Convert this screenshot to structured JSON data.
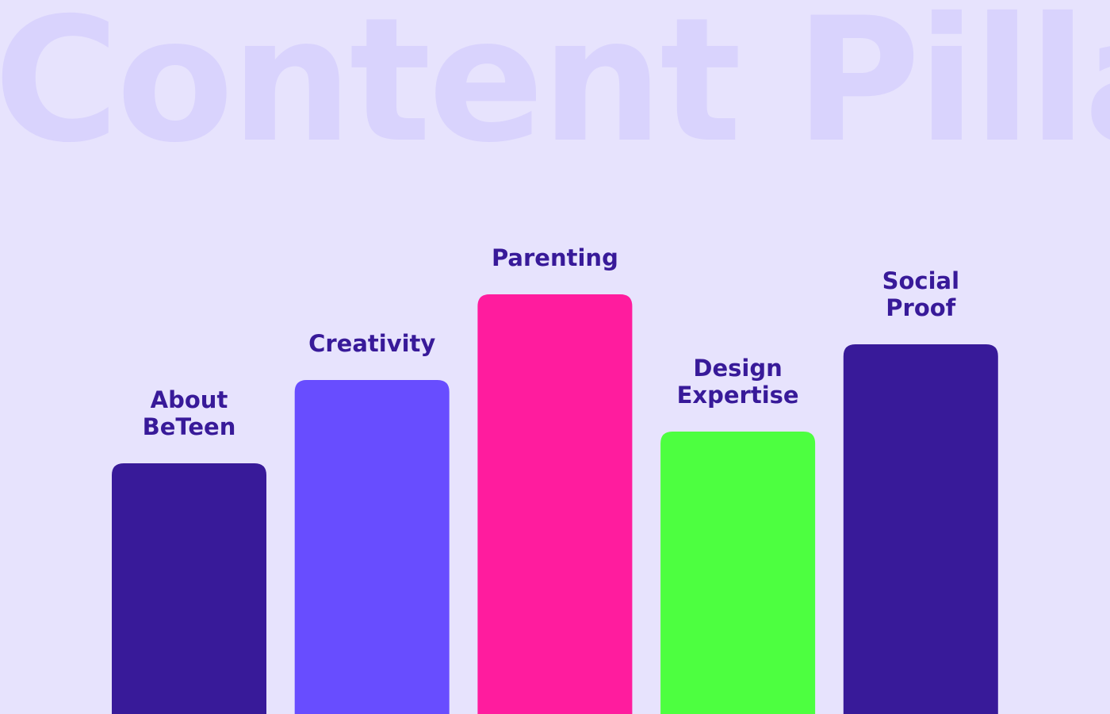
{
  "title": "Content Pillars",
  "chart_data": {
    "type": "bar",
    "categories": [
      "About\nBeTeen",
      "Creativity",
      "Parenting",
      "Design\nExpertise",
      "Social\nProof"
    ],
    "values": [
      316,
      421,
      529,
      356,
      466
    ],
    "colors": [
      "#381a99",
      "#684dff",
      "#ff1c9e",
      "#4dff40",
      "#381a99"
    ],
    "title": "Content Pillars",
    "xlabel": "",
    "ylabel": "",
    "ylim": [
      0,
      529
    ],
    "grid": false,
    "legend": "none"
  }
}
